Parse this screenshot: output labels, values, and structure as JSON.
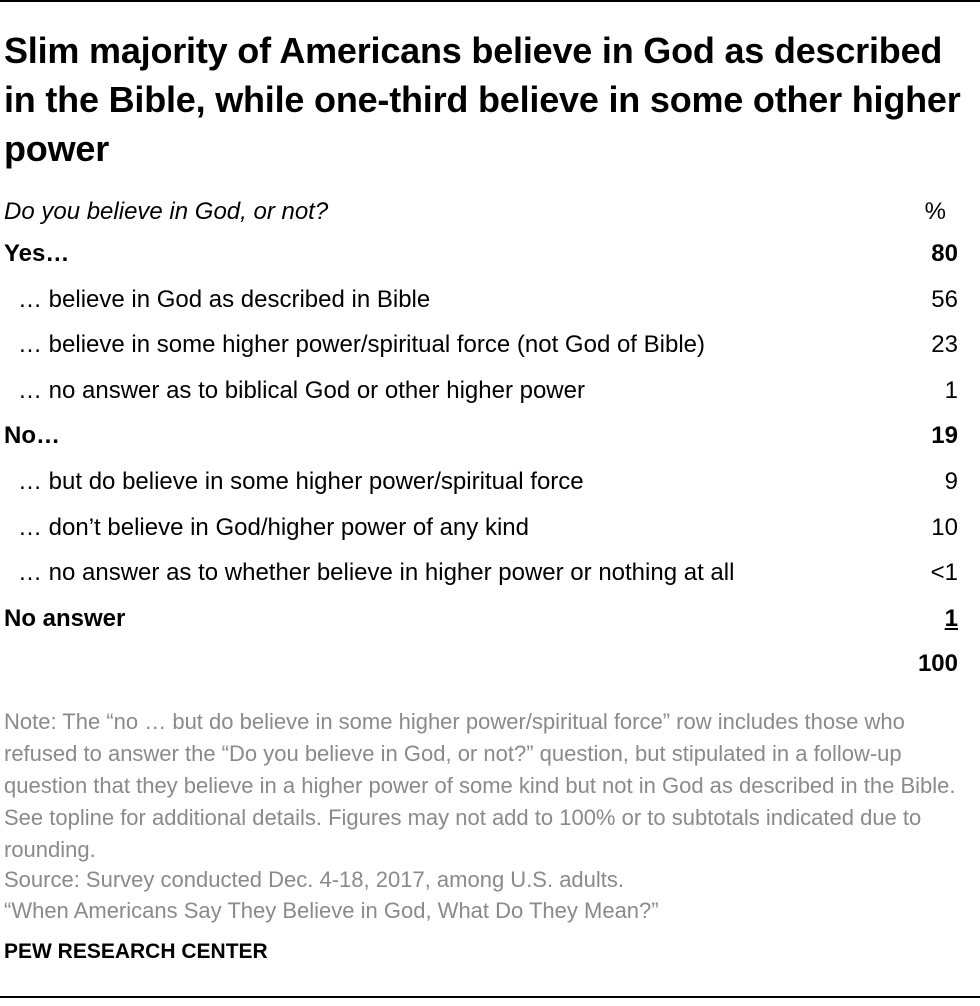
{
  "chart_data": {
    "type": "table",
    "title": "Slim majority of Americans believe in God as described in the Bible, while one-third believe in some other higher power",
    "question": "Do you believe in God, or not?",
    "value_header": "%",
    "rows": [
      {
        "label": "Yes…",
        "value": "80"
      },
      {
        "label": "… believe in God as described in Bible",
        "value": "56"
      },
      {
        "label": "… believe in some higher power/spiritual force (not God of Bible)",
        "value": "23"
      },
      {
        "label": "… no answer as to biblical God or other higher power",
        "value": "1"
      },
      {
        "label": "No…",
        "value": "19"
      },
      {
        "label": "… but do believe in some higher power/spiritual force",
        "value": "9"
      },
      {
        "label": "… don’t believe in God/higher power of any kind",
        "value": "10"
      },
      {
        "label": "… no answer as to whether believe in higher power or nothing at all",
        "value": "<1"
      },
      {
        "label": "No answer",
        "value": "1"
      },
      {
        "label": "",
        "value": "100"
      }
    ],
    "note": "Note: The “no … but do believe in some higher power/spiritual force” row includes those who refused to answer the “Do you believe in God, or not?” question, but stipulated in a follow-up question that they believe in a higher power of some kind but not in God as described in the Bible. See topline for additional details. Figures may not add to 100% or to subtotals indicated due to rounding.",
    "source": "Source: Survey conducted Dec. 4-18, 2017, among U.S. adults.",
    "report": "“When Americans Say They Believe in God, What Do They Mean?”",
    "brand": "PEW RESEARCH CENTER"
  }
}
